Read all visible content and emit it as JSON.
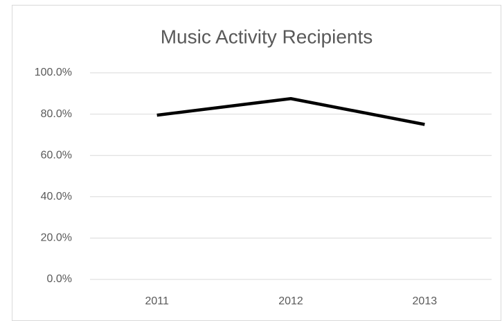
{
  "chart_data": {
    "type": "line",
    "title": "Music Activity Recipients",
    "categories": [
      "2011",
      "2012",
      "2013"
    ],
    "values": [
      79.5,
      87.5,
      75
    ],
    "color": "#000000",
    "ylim": [
      0,
      100
    ],
    "yticks": [
      {
        "value": 0,
        "label": "0.0%"
      },
      {
        "value": 20,
        "label": "20.0%"
      },
      {
        "value": 40,
        "label": "40.0%"
      },
      {
        "value": 60,
        "label": "60.0%"
      },
      {
        "value": 80,
        "label": "80.0%"
      },
      {
        "value": 100,
        "label": "100.0%"
      }
    ],
    "grid": true
  }
}
